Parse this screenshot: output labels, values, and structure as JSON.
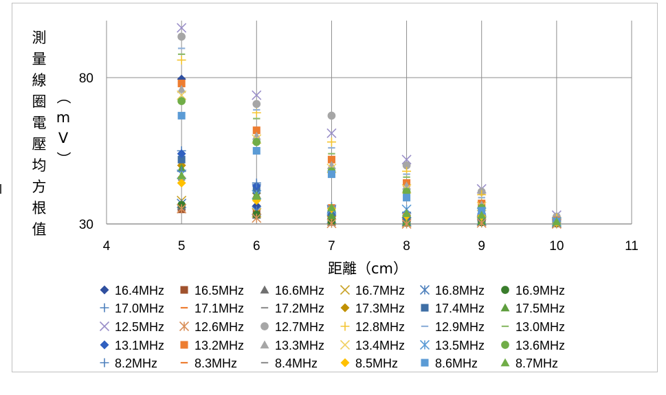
{
  "chart_data": {
    "type": "scatter",
    "title": "",
    "xlabel": "距離（cm）",
    "ylabel": "測量線圈電壓均方根值（mV）",
    "xlim": [
      4,
      11
    ],
    "ylim": [
      30,
      100
    ],
    "x_ticks": [
      "4",
      "5",
      "6",
      "7",
      "8",
      "9",
      "10",
      "11"
    ],
    "y_ticks": [
      "30",
      "80"
    ],
    "grid": "vertical and horizontal major",
    "legend_position": "bottom",
    "series": [
      {
        "name": "16.4MHz",
        "marker": "diamond",
        "color": "#2f4f9f",
        "points": [
          [
            5,
            79.5
          ],
          [
            6,
            36.2
          ],
          [
            7,
            32.0
          ],
          [
            8,
            30.8
          ],
          [
            9,
            31.2
          ],
          [
            10,
            30.4
          ]
        ]
      },
      {
        "name": "16.5MHz",
        "marker": "square",
        "color": "#a0522d",
        "points": [
          [
            5,
            35.0
          ],
          [
            6,
            33.5
          ],
          [
            7,
            31.0
          ],
          [
            8,
            30.5
          ],
          [
            9,
            30.8
          ],
          [
            10,
            30.2
          ]
        ]
      },
      {
        "name": "16.6MHz",
        "marker": "triangle",
        "color": "#707070",
        "points": [
          [
            5,
            36.0
          ],
          [
            6,
            33.0
          ],
          [
            7,
            30.6
          ],
          [
            8,
            30.4
          ],
          [
            9,
            30.7
          ],
          [
            10,
            30.2
          ]
        ]
      },
      {
        "name": "16.7MHz",
        "marker": "x",
        "color": "#c9a227",
        "points": [
          [
            5,
            38.0
          ],
          [
            6,
            33.8
          ],
          [
            7,
            31.3
          ],
          [
            8,
            30.6
          ],
          [
            9,
            30.9
          ],
          [
            10,
            30.3
          ]
        ]
      },
      {
        "name": "16.8MHz",
        "marker": "asterisk",
        "color": "#4f81bd",
        "points": [
          [
            5,
            37.0
          ],
          [
            6,
            34.5
          ],
          [
            7,
            31.7
          ],
          [
            8,
            30.8
          ],
          [
            9,
            31.0
          ],
          [
            10,
            30.4
          ]
        ]
      },
      {
        "name": "16.9MHz",
        "marker": "circle",
        "color": "#3a7d2c",
        "points": [
          [
            5,
            36.5
          ],
          [
            6,
            33.2
          ],
          [
            7,
            30.9
          ],
          [
            8,
            30.4
          ],
          [
            9,
            30.6
          ],
          [
            10,
            30.2
          ]
        ]
      },
      {
        "name": "17.0MHz",
        "marker": "plus",
        "color": "#4f81bd",
        "points": [
          [
            5,
            55.0
          ],
          [
            6,
            43.5
          ],
          [
            7,
            34.0
          ],
          [
            8,
            31.5
          ],
          [
            9,
            31.6
          ],
          [
            10,
            30.6
          ]
        ]
      },
      {
        "name": "17.1MHz",
        "marker": "dash",
        "color": "#ed7d31",
        "points": [
          [
            5,
            53.0
          ],
          [
            6,
            42.0
          ],
          [
            7,
            33.5
          ],
          [
            8,
            31.2
          ],
          [
            9,
            31.4
          ],
          [
            10,
            30.5
          ]
        ]
      },
      {
        "name": "17.2MHz",
        "marker": "dash",
        "color": "#909090",
        "points": [
          [
            5,
            51.0
          ],
          [
            6,
            41.0
          ],
          [
            7,
            33.0
          ],
          [
            8,
            31.0
          ],
          [
            9,
            31.2
          ],
          [
            10,
            30.4
          ]
        ]
      },
      {
        "name": "17.3MHz",
        "marker": "diamond",
        "color": "#c09000",
        "points": [
          [
            5,
            50.0
          ],
          [
            6,
            40.5
          ],
          [
            7,
            32.5
          ],
          [
            8,
            30.8
          ],
          [
            9,
            31.0
          ],
          [
            10,
            30.3
          ]
        ]
      },
      {
        "name": "17.4MHz",
        "marker": "square",
        "color": "#3f6fa5",
        "points": [
          [
            5,
            52.0
          ],
          [
            6,
            41.5
          ],
          [
            7,
            33.8
          ],
          [
            8,
            31.4
          ],
          [
            9,
            31.5
          ],
          [
            10,
            30.6
          ]
        ]
      },
      {
        "name": "17.5MHz",
        "marker": "triangle",
        "color": "#5e9e3e",
        "points": [
          [
            5,
            49.0
          ],
          [
            6,
            40.0
          ],
          [
            7,
            32.8
          ],
          [
            8,
            30.9
          ],
          [
            9,
            31.1
          ],
          [
            10,
            30.3
          ]
        ]
      },
      {
        "name": "12.5MHz",
        "marker": "x",
        "color": "#9a8fc9",
        "points": [
          [
            5,
            97.0
          ],
          [
            6,
            74.0
          ],
          [
            7,
            61.0
          ],
          [
            8,
            52.0
          ],
          [
            9,
            42.0
          ],
          [
            10,
            33.0
          ]
        ]
      },
      {
        "name": "12.6MHz",
        "marker": "asterisk",
        "color": "#d9905a",
        "points": [
          [
            5,
            35.2
          ],
          [
            6,
            32.0
          ],
          [
            7,
            30.2
          ],
          [
            8,
            30.0
          ],
          [
            9,
            30.3
          ],
          [
            10,
            30.0
          ]
        ]
      },
      {
        "name": "12.7MHz",
        "marker": "circle",
        "color": "#a6a6a6",
        "points": [
          [
            5,
            94.0
          ],
          [
            6,
            71.0
          ],
          [
            7,
            67.0
          ],
          [
            8,
            50.0
          ],
          [
            9,
            41.0
          ],
          [
            10,
            32.5
          ]
        ]
      },
      {
        "name": "12.8MHz",
        "marker": "plus",
        "color": "#f4c430",
        "points": [
          [
            5,
            86.0
          ],
          [
            6,
            68.0
          ],
          [
            7,
            58.0
          ],
          [
            8,
            48.0
          ],
          [
            9,
            40.0
          ],
          [
            10,
            32.0
          ]
        ]
      },
      {
        "name": "12.9MHz",
        "marker": "dash",
        "color": "#8fb0d9",
        "points": [
          [
            5,
            90.0
          ],
          [
            6,
            69.0
          ],
          [
            7,
            56.0
          ],
          [
            8,
            47.0
          ],
          [
            9,
            39.0
          ],
          [
            10,
            31.8
          ]
        ]
      },
      {
        "name": "13.0MHz",
        "marker": "dash",
        "color": "#8dbb6a",
        "points": [
          [
            5,
            88.0
          ],
          [
            6,
            66.0
          ],
          [
            7,
            54.0
          ],
          [
            8,
            46.0
          ],
          [
            9,
            38.0
          ],
          [
            10,
            31.5
          ]
        ]
      },
      {
        "name": "13.1MHz",
        "marker": "diamond",
        "color": "#3060c0",
        "points": [
          [
            5,
            54.0
          ],
          [
            6,
            43.0
          ],
          [
            7,
            35.5
          ],
          [
            8,
            33.0
          ],
          [
            9,
            33.5
          ],
          [
            10,
            31.0
          ]
        ]
      },
      {
        "name": "13.2MHz",
        "marker": "square",
        "color": "#ed7d31",
        "points": [
          [
            5,
            78.0
          ],
          [
            6,
            62.0
          ],
          [
            7,
            52.0
          ],
          [
            8,
            44.0
          ],
          [
            9,
            37.0
          ],
          [
            10,
            31.2
          ]
        ]
      },
      {
        "name": "13.3MHz",
        "marker": "triangle",
        "color": "#a6a6a6",
        "points": [
          [
            5,
            76.0
          ],
          [
            6,
            60.0
          ],
          [
            7,
            50.0
          ],
          [
            8,
            43.0
          ],
          [
            9,
            36.5
          ],
          [
            10,
            31.0
          ]
        ]
      },
      {
        "name": "13.4MHz",
        "marker": "x",
        "color": "#f0d060",
        "points": [
          [
            5,
            74.0
          ],
          [
            6,
            59.0
          ],
          [
            7,
            49.0
          ],
          [
            8,
            42.0
          ],
          [
            9,
            36.0
          ],
          [
            10,
            30.9
          ]
        ]
      },
      {
        "name": "13.5MHz",
        "marker": "asterisk",
        "color": "#5b9bd5",
        "points": [
          [
            5,
            47.0
          ],
          [
            6,
            40.0
          ],
          [
            7,
            35.0
          ],
          [
            8,
            35.0
          ],
          [
            9,
            34.0
          ],
          [
            10,
            30.8
          ]
        ]
      },
      {
        "name": "13.6MHz",
        "marker": "circle",
        "color": "#70ad47",
        "points": [
          [
            5,
            72.0
          ],
          [
            6,
            58.0
          ],
          [
            7,
            48.0
          ],
          [
            8,
            41.0
          ],
          [
            9,
            35.5
          ],
          [
            10,
            30.8
          ]
        ]
      },
      {
        "name": "8.2MHz",
        "marker": "plus",
        "color": "#4f81bd",
        "points": [
          [
            5,
            48.0
          ],
          [
            6,
            44.0
          ],
          [
            7,
            36.0
          ],
          [
            8,
            34.0
          ],
          [
            9,
            33.0
          ],
          [
            10,
            31.0
          ]
        ]
      },
      {
        "name": "8.3MHz",
        "marker": "dash",
        "color": "#ed7d31",
        "points": [
          [
            5,
            46.0
          ],
          [
            6,
            39.0
          ],
          [
            7,
            36.5
          ],
          [
            8,
            33.5
          ],
          [
            9,
            33.2
          ],
          [
            10,
            30.9
          ]
        ]
      },
      {
        "name": "8.4MHz",
        "marker": "dash",
        "color": "#909090",
        "points": [
          [
            5,
            45.0
          ],
          [
            6,
            38.5
          ],
          [
            7,
            35.8
          ],
          [
            8,
            33.0
          ],
          [
            9,
            32.8
          ],
          [
            10,
            30.7
          ]
        ]
      },
      {
        "name": "8.5MHz",
        "marker": "diamond",
        "color": "#ffc000",
        "points": [
          [
            5,
            44.0
          ],
          [
            6,
            38.0
          ],
          [
            7,
            35.2
          ],
          [
            8,
            32.8
          ],
          [
            9,
            32.6
          ],
          [
            10,
            30.6
          ]
        ]
      },
      {
        "name": "8.6MHz",
        "marker": "square",
        "color": "#5b9bd5",
        "points": [
          [
            5,
            67.0
          ],
          [
            6,
            55.0
          ],
          [
            7,
            47.0
          ],
          [
            8,
            39.0
          ],
          [
            9,
            34.5
          ],
          [
            10,
            30.9
          ]
        ]
      },
      {
        "name": "8.7MHz",
        "marker": "triangle",
        "color": "#70ad47",
        "points": [
          [
            5,
            46.5
          ],
          [
            6,
            39.5
          ],
          [
            7,
            35.6
          ],
          [
            8,
            33.6
          ],
          [
            9,
            33.0
          ],
          [
            10,
            30.8
          ]
        ]
      }
    ]
  }
}
